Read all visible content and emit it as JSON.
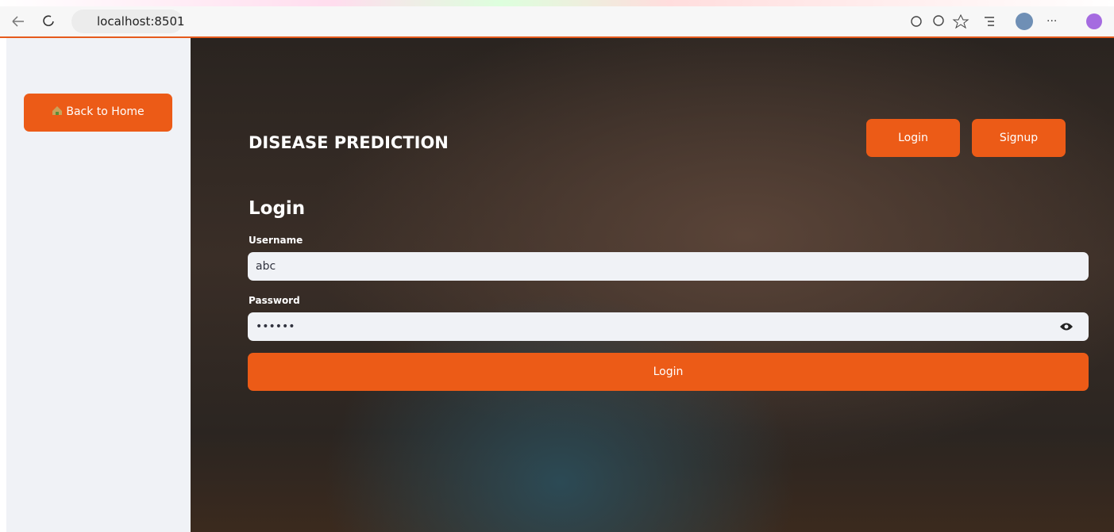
{
  "browser": {
    "url": "localhost:8501"
  },
  "sidebar": {
    "button": "Back to Home"
  },
  "header": {
    "title": "DISEASE PREDICTION",
    "nav": [
      "Login",
      "Signup"
    ]
  },
  "form": {
    "heading": "Login",
    "fields": [
      {
        "label": "Username",
        "value": "abc"
      },
      {
        "label": "Password",
        "value": "••••••"
      }
    ],
    "submit": "Login"
  }
}
